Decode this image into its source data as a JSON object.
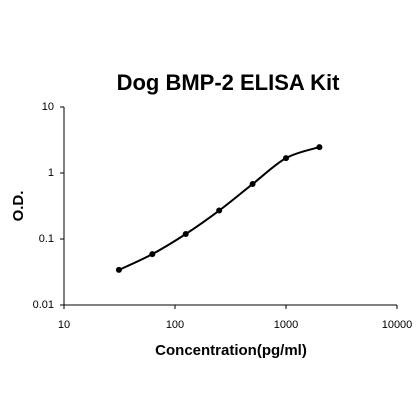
{
  "chart_data": {
    "type": "line",
    "title": "Dog BMP-2 ELISA Kit",
    "x_label": "Concentration(pg/ml)",
    "y_label": "O.D.",
    "x": [
      31.25,
      62.5,
      125,
      250,
      500,
      1000,
      2000
    ],
    "series": [
      {
        "color": "#000000",
        "values": [
          0.034,
          0.059,
          0.119,
          0.27,
          0.68,
          1.68,
          2.47
        ]
      }
    ],
    "xscale": "log",
    "yscale": "log",
    "xlim": [
      10,
      10000
    ],
    "ylim": [
      0.01,
      10
    ],
    "xticks": [
      10,
      100,
      1000,
      10000
    ],
    "yticks": [
      0.01,
      0.1,
      1,
      10
    ],
    "grid": false
  }
}
